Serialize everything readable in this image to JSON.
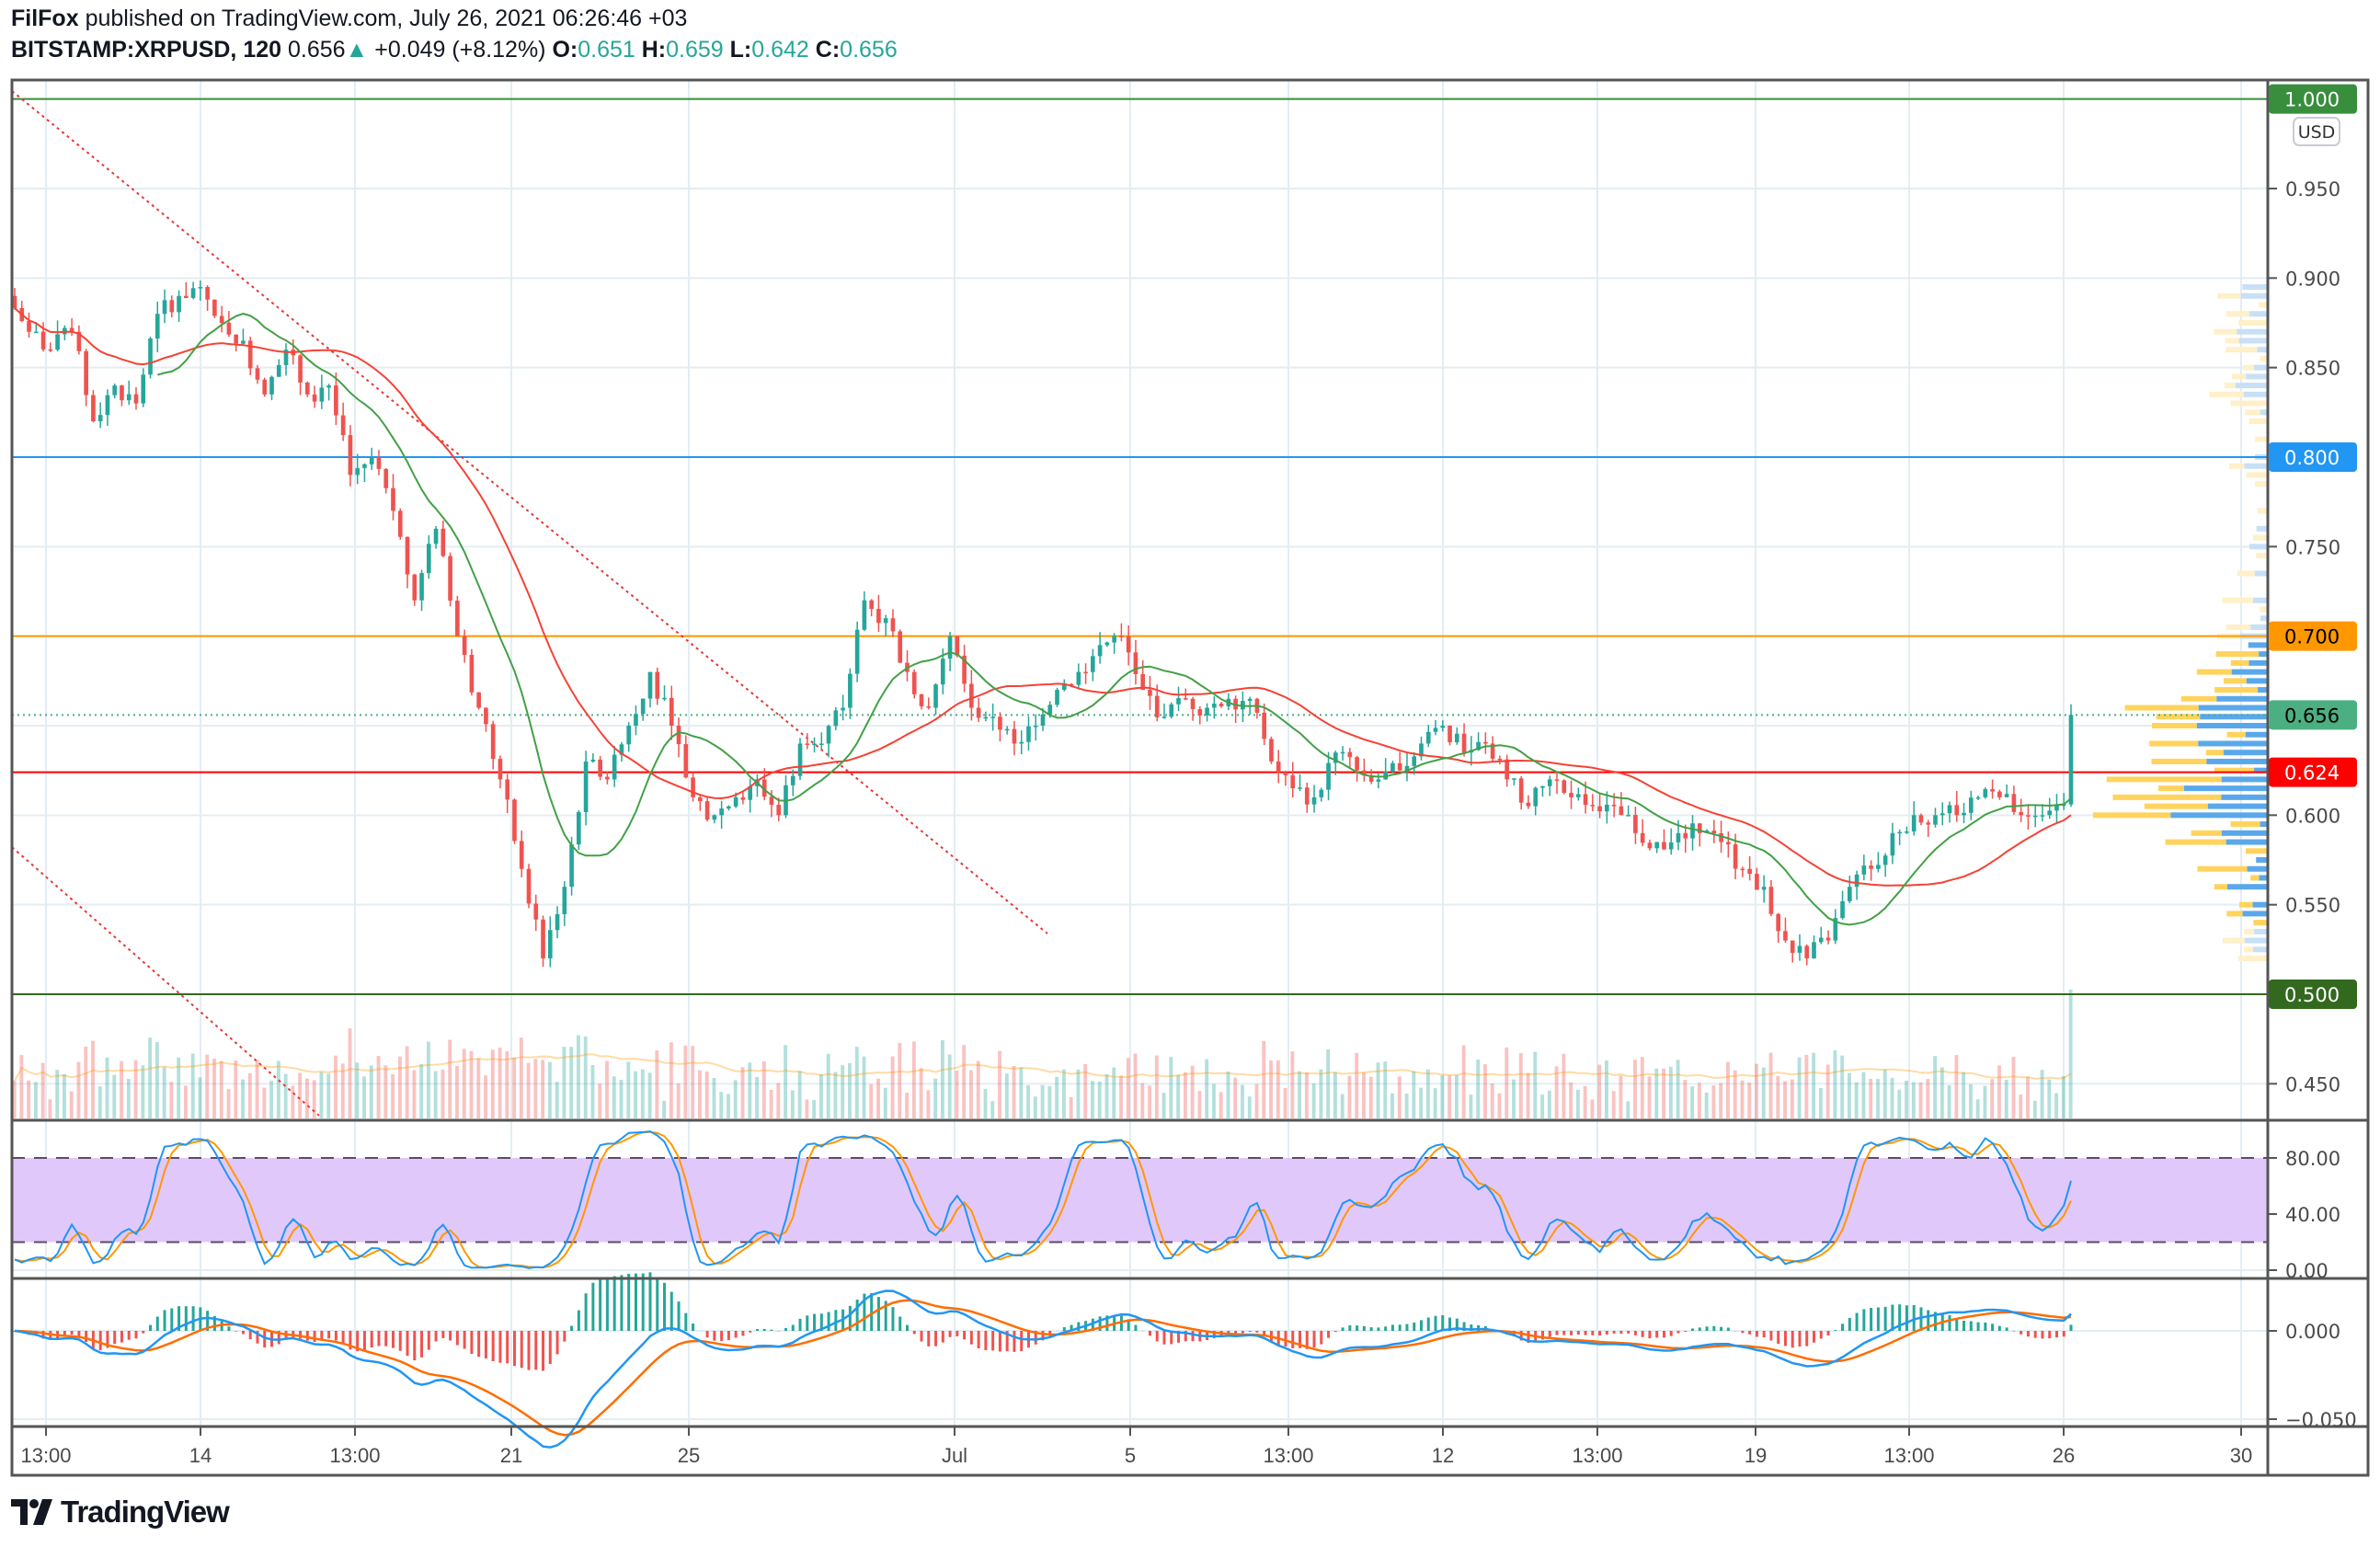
{
  "header": {
    "author": "FilFox",
    "published_text": "published on TradingView.com, July 26, 2021 06:26:46 +03",
    "symbol": "BITSTAMP:XRPUSD, 120",
    "last": "0.656",
    "change": "+0.049 (+8.12%)",
    "o_label": "O:",
    "o": "0.651",
    "h_label": "H:",
    "h": "0.659",
    "l_label": "L:",
    "l": "0.642",
    "c_label": "C:",
    "c": "0.656"
  },
  "currency_badge": "USD",
  "price_axis": [
    "0.950",
    "0.900",
    "0.850",
    "0.750",
    "0.600",
    "0.550"
  ],
  "levels": [
    {
      "label": "1.000",
      "price": 1.0,
      "color": "#388e3c",
      "text": "#ffffff"
    },
    {
      "label": "0.800",
      "price": 0.8,
      "color": "#2196f3",
      "text": "#ffffff"
    },
    {
      "label": "0.700",
      "price": 0.7,
      "color": "#ff9800",
      "text": "#000000"
    },
    {
      "label": "0.624",
      "price": 0.624,
      "color": "#ff0000",
      "text": "#ffffff"
    },
    {
      "label": "0.500",
      "price": 0.5,
      "color": "#33691e",
      "text": "#ffffff"
    }
  ],
  "last_price_label": {
    "label": "0.656",
    "price": 0.656,
    "color": "#4caf82"
  },
  "volume_axis": "0.450",
  "stoch_axis": [
    "80.00",
    "40.00",
    "0.00"
  ],
  "macd_axis": [
    "0.000",
    "−0.050"
  ],
  "time_axis": [
    "13:00",
    "14",
    "13:00",
    "21",
    "25",
    "Jul",
    "5",
    "13:00",
    "12",
    "13:00",
    "19",
    "13:00",
    "26",
    "30"
  ],
  "logo_text": "TradingView",
  "chart_data": {
    "type": "candlestick",
    "title": "BITSTAMP:XRPUSD, 120",
    "ylabel": "USD",
    "ylim": [
      0.42,
      1.0
    ],
    "closes": [
      0.89,
      0.87,
      0.86,
      0.87,
      0.82,
      0.84,
      0.83,
      0.88,
      0.89,
      0.895,
      0.875,
      0.865,
      0.835,
      0.86,
      0.835,
      0.84,
      0.79,
      0.8,
      0.77,
      0.72,
      0.76,
      0.7,
      0.66,
      0.62,
      0.57,
      0.52,
      0.56,
      0.63,
      0.62,
      0.65,
      0.68,
      0.65,
      0.61,
      0.6,
      0.61,
      0.62,
      0.6,
      0.64,
      0.64,
      0.66,
      0.72,
      0.71,
      0.68,
      0.66,
      0.7,
      0.66,
      0.655,
      0.64,
      0.65,
      0.67,
      0.68,
      0.695,
      0.7,
      0.67,
      0.655,
      0.665,
      0.66,
      0.665,
      0.665,
      0.63,
      0.615,
      0.61,
      0.635,
      0.625,
      0.62,
      0.625,
      0.64,
      0.65,
      0.635,
      0.64,
      0.62,
      0.605,
      0.62,
      0.61,
      0.605,
      0.605,
      0.59,
      0.585,
      0.59,
      0.59,
      0.585,
      0.57,
      0.56,
      0.53,
      0.52,
      0.53,
      0.56,
      0.57,
      0.59,
      0.6,
      0.6,
      0.6,
      0.61,
      0.61,
      0.6,
      0.6,
      0.606,
      0.656
    ],
    "stoch_bands": [
      20,
      80
    ],
    "colors": {
      "up": "#26a69a",
      "down": "#ef5350",
      "ma_long": "#f44336",
      "ma_short": "#43a047",
      "stoch_k": "#2196f3",
      "stoch_d": "#ff9800",
      "macd": "#2196f3",
      "signal": "#ff6d00"
    }
  }
}
